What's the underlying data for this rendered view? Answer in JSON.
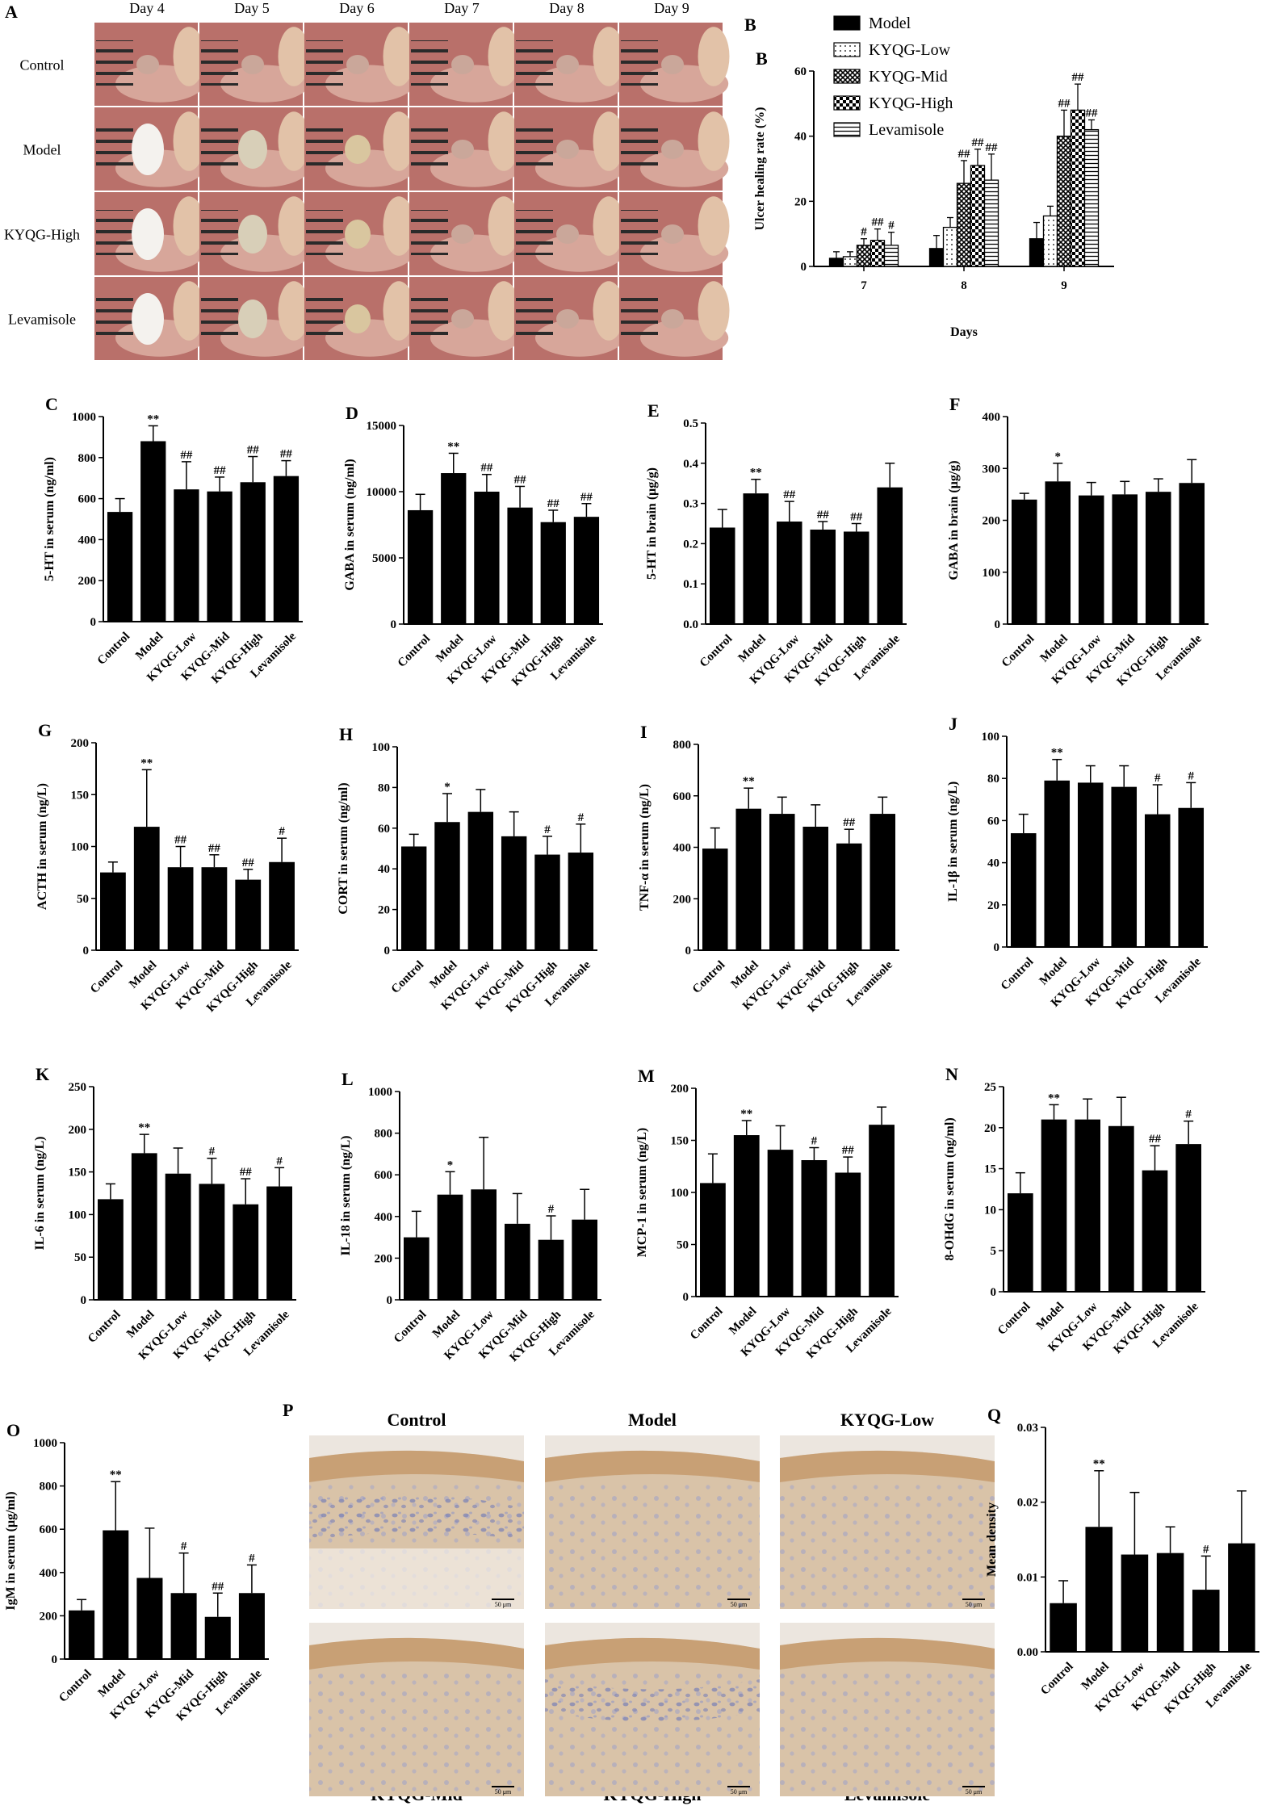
{
  "panels": {
    "a_label": "A",
    "b_label": "B",
    "p_label": "P"
  },
  "panel_a": {
    "days": [
      "Day 4",
      "Day 5",
      "Day 6",
      "Day 7",
      "Day 8",
      "Day 9"
    ],
    "rows": [
      "Control",
      "Model",
      "KYQG-High",
      "Levamisole"
    ]
  },
  "panel_p": {
    "top_labels": [
      "Control",
      "Model",
      "KYQG-Low"
    ],
    "bottom_labels": [
      "KYQG-Mid",
      "KYQG-High",
      "Levamisole"
    ],
    "scale_text": "50 μm"
  },
  "colors": {
    "bar": "#000000",
    "tissue_base": "#d9c3a8",
    "tissue_brown": "#c49a6c",
    "tissue_nuclei": "#7f84b5",
    "mouth_base": "#b9706a"
  },
  "chart_data": [
    {
      "id": "B",
      "type": "bar",
      "panel": "B",
      "categories": [
        "7",
        "8",
        "9"
      ],
      "xlabel": "Days",
      "ylabel": "Ulcer healing rate (%)",
      "ylim": [
        0,
        60
      ],
      "yticks": [
        0,
        20,
        40,
        60
      ],
      "legend_placement": "top",
      "series": [
        {
          "name": "Model",
          "pattern": "solid",
          "values": [
            2.5,
            5.5,
            8.5
          ],
          "errors": [
            2,
            4,
            5
          ],
          "sig": [
            "",
            "",
            ""
          ]
        },
        {
          "name": "KYQG-Low",
          "pattern": "dots",
          "values": [
            3,
            12,
            15.5
          ],
          "errors": [
            1.5,
            3,
            3
          ],
          "sig": [
            "",
            "",
            ""
          ]
        },
        {
          "name": "KYQG-Mid",
          "pattern": "crosshatch",
          "values": [
            6.5,
            25.5,
            40
          ],
          "errors": [
            2,
            7,
            8
          ],
          "sig": [
            "#",
            "##",
            "##"
          ]
        },
        {
          "name": "KYQG-High",
          "pattern": "checker",
          "values": [
            8,
            31,
            48
          ],
          "errors": [
            3.5,
            5,
            8
          ],
          "sig": [
            "##",
            "##",
            "##"
          ]
        },
        {
          "name": "Levamisole",
          "pattern": "hlines",
          "values": [
            6.5,
            26.5,
            42
          ],
          "errors": [
            4,
            8,
            3
          ],
          "sig": [
            "#",
            "##",
            "##"
          ]
        }
      ]
    },
    {
      "id": "C",
      "type": "bar",
      "panel": "C",
      "categories": [
        "Control",
        "Model",
        "KYQG-Low",
        "KYQG-Mid",
        "KYQG-High",
        "Levamisole"
      ],
      "ylabel": "5-HT in serum (ng/ml)",
      "ylim": [
        0,
        1000
      ],
      "yticks": [
        0,
        200,
        400,
        600,
        800,
        1000
      ],
      "values": [
        535,
        880,
        645,
        635,
        680,
        710
      ],
      "errors": [
        65,
        75,
        135,
        70,
        125,
        75
      ],
      "sig": [
        "",
        "**",
        "##",
        "##",
        "##",
        "##"
      ]
    },
    {
      "id": "D",
      "type": "bar",
      "panel": "D",
      "categories": [
        "Control",
        "Model",
        "KYQG-Low",
        "KYQG-Mid",
        "KYQG-High",
        "Levamisole"
      ],
      "ylabel": "GABA in serum (ng/ml)",
      "ylim": [
        0,
        15000
      ],
      "yticks": [
        0,
        5000,
        10000,
        15000
      ],
      "values": [
        8600,
        11400,
        10000,
        8800,
        7700,
        8100
      ],
      "errors": [
        1200,
        1500,
        1300,
        1600,
        900,
        1000
      ],
      "sig": [
        "",
        "**",
        "##",
        "##",
        "##",
        "##"
      ]
    },
    {
      "id": "E",
      "type": "bar",
      "panel": "E",
      "categories": [
        "Control",
        "Model",
        "KYQG-Low",
        "KYQG-Mid",
        "KYQG-High",
        "Levamisole"
      ],
      "ylabel": "5-HT in brain (μg/g)",
      "ylim": [
        0,
        0.5
      ],
      "yticks": [
        0.0,
        0.1,
        0.2,
        0.3,
        0.4,
        0.5
      ],
      "ytick_labels": [
        "0.0",
        "0.1",
        "0.2",
        "0.3",
        "0.4",
        "0.5"
      ],
      "values": [
        0.24,
        0.325,
        0.255,
        0.235,
        0.23,
        0.34
      ],
      "errors": [
        0.045,
        0.035,
        0.05,
        0.02,
        0.02,
        0.06
      ],
      "sig": [
        "",
        "**",
        "##",
        "##",
        "##",
        ""
      ]
    },
    {
      "id": "F",
      "type": "bar",
      "panel": "F",
      "categories": [
        "Control",
        "Model",
        "KYQG-Low",
        "KYQG-Mid",
        "KYQG-High",
        "Levamisole"
      ],
      "ylabel": "GABA in brain (μg/g)",
      "ylim": [
        0,
        400
      ],
      "yticks": [
        0,
        100,
        200,
        300,
        400
      ],
      "values": [
        240,
        275,
        248,
        250,
        255,
        272
      ],
      "errors": [
        12,
        35,
        25,
        25,
        25,
        45
      ],
      "sig": [
        "",
        "*",
        "",
        "",
        "",
        ""
      ]
    },
    {
      "id": "G",
      "type": "bar",
      "panel": "G",
      "categories": [
        "Control",
        "Model",
        "KYQG-Low",
        "KYQG-Mid",
        "KYQG-High",
        "Levamisole"
      ],
      "ylabel": "ACTH in serum (ng/L)",
      "ylim": [
        0,
        200
      ],
      "yticks": [
        0,
        50,
        100,
        150,
        200
      ],
      "values": [
        75,
        119,
        80,
        80,
        68,
        85
      ],
      "errors": [
        10,
        55,
        20,
        12,
        10,
        23
      ],
      "sig": [
        "",
        "**",
        "##",
        "##",
        "##",
        "#"
      ]
    },
    {
      "id": "H",
      "type": "bar",
      "panel": "H",
      "categories": [
        "Control",
        "Model",
        "KYQG-Low",
        "KYQG-Mid",
        "KYQG-High",
        "Levamisole"
      ],
      "ylabel": "CORT in serum (ng/ml)",
      "ylim": [
        0,
        100
      ],
      "yticks": [
        0,
        20,
        40,
        60,
        80,
        100
      ],
      "values": [
        51,
        63,
        68,
        56,
        47,
        48
      ],
      "errors": [
        6,
        14,
        11,
        12,
        9,
        14
      ],
      "sig": [
        "",
        "*",
        "",
        "",
        "#",
        "#"
      ]
    },
    {
      "id": "I",
      "type": "bar",
      "panel": "I",
      "categories": [
        "Control",
        "Model",
        "KYQG-Low",
        "KYQG-Mid",
        "KYQG-High",
        "Levamisole"
      ],
      "ylabel": "TNF-α in serum (ng/L)",
      "ylim": [
        0,
        800
      ],
      "yticks": [
        0,
        200,
        400,
        600,
        800
      ],
      "values": [
        395,
        550,
        530,
        480,
        415,
        530
      ],
      "errors": [
        80,
        80,
        65,
        85,
        55,
        65
      ],
      "sig": [
        "",
        "**",
        "",
        "",
        "##",
        ""
      ]
    },
    {
      "id": "J",
      "type": "bar",
      "panel": "J",
      "categories": [
        "Control",
        "Model",
        "KYQG-Low",
        "KYQG-Mid",
        "KYQG-High",
        "Levamisole"
      ],
      "ylabel": "IL-1β in serum (ng/L)",
      "ylim": [
        0,
        100
      ],
      "yticks": [
        0,
        20,
        40,
        60,
        80,
        100
      ],
      "values": [
        54,
        79,
        78,
        76,
        63,
        66
      ],
      "errors": [
        9,
        10,
        8,
        10,
        14,
        12
      ],
      "sig": [
        "",
        "**",
        "",
        "",
        "#",
        "#"
      ]
    },
    {
      "id": "K",
      "type": "bar",
      "panel": "K",
      "categories": [
        "Control",
        "Model",
        "KYQG-Low",
        "KYQG-Mid",
        "KYQG-High",
        "Levamisole"
      ],
      "ylabel": "IL-6 in serum (ng/L)",
      "ylim": [
        0,
        250
      ],
      "yticks": [
        0,
        50,
        100,
        150,
        200,
        250
      ],
      "values": [
        118,
        172,
        148,
        136,
        112,
        133
      ],
      "errors": [
        18,
        22,
        30,
        30,
        30,
        22
      ],
      "sig": [
        "",
        "**",
        "",
        "#",
        "##",
        "#"
      ]
    },
    {
      "id": "L",
      "type": "bar",
      "panel": "L",
      "categories": [
        "Control",
        "Model",
        "KYQG-Low",
        "KYQG-Mid",
        "KYQG-High",
        "Levamisole"
      ],
      "ylabel": "IL-18 in serum (ng/L)",
      "ylim": [
        0,
        1000
      ],
      "yticks": [
        0,
        200,
        400,
        600,
        800,
        1000
      ],
      "values": [
        300,
        505,
        530,
        365,
        288,
        385
      ],
      "errors": [
        125,
        110,
        250,
        145,
        115,
        145
      ],
      "sig": [
        "",
        "*",
        "",
        "",
        "#",
        ""
      ]
    },
    {
      "id": "M",
      "type": "bar",
      "panel": "M",
      "categories": [
        "Control",
        "Model",
        "KYQG-Low",
        "KYQG-Mid",
        "KYQG-High",
        "Levamisole"
      ],
      "ylabel": "MCP-1 in serum (ng/L)",
      "ylim": [
        0,
        200
      ],
      "yticks": [
        0,
        50,
        100,
        150,
        200
      ],
      "values": [
        109,
        155,
        141,
        131,
        119,
        165
      ],
      "errors": [
        28,
        14,
        23,
        12,
        15,
        17
      ],
      "sig": [
        "",
        "**",
        "",
        "#",
        "##",
        ""
      ]
    },
    {
      "id": "N",
      "type": "bar",
      "panel": "N",
      "categories": [
        "Control",
        "Model",
        "KYQG-Low",
        "KYQG-Mid",
        "KYQG-High",
        "Levamisole"
      ],
      "ylabel": "8-OHdG in serum (ng/ml)",
      "ylim": [
        0,
        25
      ],
      "yticks": [
        0,
        5,
        10,
        15,
        20,
        25
      ],
      "values": [
        12,
        21,
        21,
        20.2,
        14.8,
        18
      ],
      "errors": [
        2.5,
        1.8,
        2.5,
        3.5,
        3,
        2.8
      ],
      "sig": [
        "",
        "**",
        "",
        "",
        "##",
        "#"
      ]
    },
    {
      "id": "O",
      "type": "bar",
      "panel": "O",
      "categories": [
        "Control",
        "Model",
        "KYQG-Low",
        "KYQG-Mid",
        "KYQG-High",
        "Levamisole"
      ],
      "ylabel": "IgM in serum (μg/ml)",
      "ylim": [
        0,
        1000
      ],
      "yticks": [
        0,
        200,
        400,
        600,
        800,
        1000
      ],
      "values": [
        225,
        595,
        375,
        305,
        195,
        305
      ],
      "errors": [
        50,
        225,
        230,
        185,
        110,
        130
      ],
      "sig": [
        "",
        "**",
        "",
        "#",
        "##",
        "#"
      ]
    },
    {
      "id": "Q",
      "type": "bar",
      "panel": "Q",
      "categories": [
        "Control",
        "Model",
        "KYQG-Low",
        "KYQG-Mid",
        "KYQG-High",
        "Levamisole"
      ],
      "ylabel": "Mean density",
      "ylim": [
        0,
        0.03
      ],
      "yticks": [
        0.0,
        0.01,
        0.02,
        0.03
      ],
      "ytick_labels": [
        "0.00",
        "0.01",
        "0.02",
        "0.03"
      ],
      "values": [
        0.0065,
        0.0167,
        0.013,
        0.0132,
        0.0083,
        0.0145
      ],
      "errors": [
        0.003,
        0.0075,
        0.0083,
        0.0035,
        0.0045,
        0.007
      ],
      "sig": [
        "",
        "**",
        "",
        "",
        "#",
        ""
      ]
    }
  ]
}
